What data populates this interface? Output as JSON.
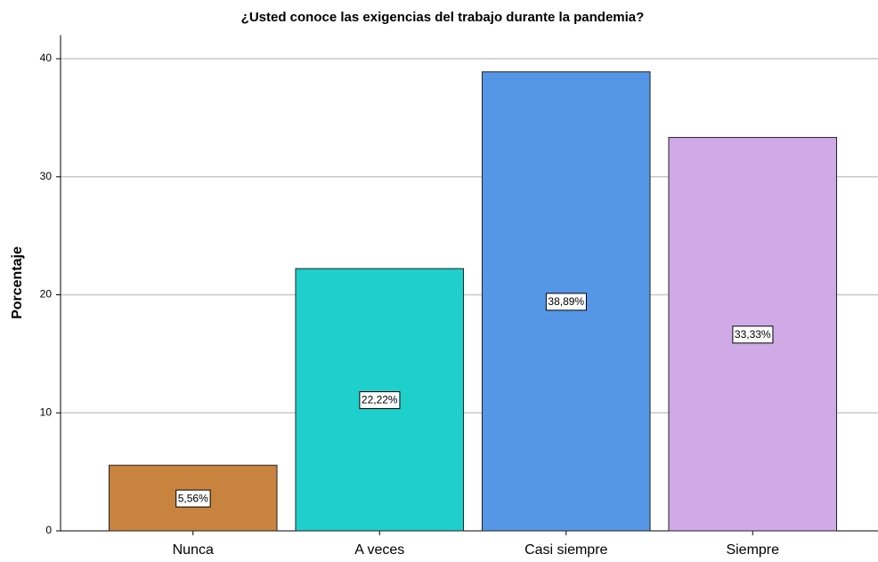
{
  "chart_data": {
    "type": "bar",
    "title": "¿Usted conoce las exigencias del trabajo durante la pandemia?",
    "ylabel": "Porcentaje",
    "categories": [
      "Nunca",
      "A veces",
      "Casi siempre",
      "Siempre"
    ],
    "values": [
      5.56,
      22.22,
      38.89,
      33.33
    ],
    "value_labels": [
      "5,56%",
      "22,22%",
      "38,89%",
      "33,33%"
    ],
    "colors": [
      "#c8843e",
      "#1ecfcb",
      "#5597e6",
      "#cfaae6"
    ],
    "ylim": [
      0,
      42
    ],
    "yticks": [
      0,
      10,
      20,
      30,
      40
    ],
    "grid": true
  }
}
